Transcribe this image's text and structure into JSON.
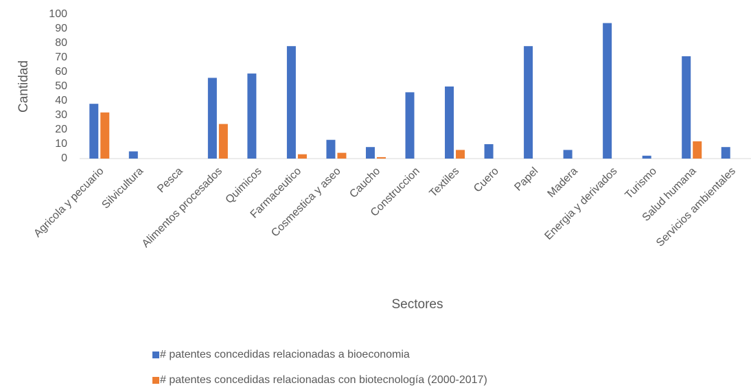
{
  "chart_data": {
    "type": "bar",
    "categories": [
      "Agricola y pecuario",
      "Silvicultura",
      "Pesca",
      "Alimentos procesados",
      "Quimicos",
      "Farmaceutico",
      "Cosmestica y aseo",
      "Caucho",
      "Construccion",
      "Textiles",
      "Cuero",
      "Papel",
      "Madera",
      "Energia y derivados",
      "Turismo",
      "Salud humana",
      "Servicios ambientales"
    ],
    "series": [
      {
        "name": "# patentes concedidas relacionadas a bioeconomia",
        "color": "#4472c4",
        "values": [
          38,
          5,
          0,
          56,
          59,
          78,
          13,
          8,
          46,
          50,
          10,
          78,
          6,
          94,
          2,
          71,
          8
        ]
      },
      {
        "name": "# patentes concedidas relacionadas con biotecnología (2000-2017)",
        "color": "#ed7d31",
        "values": [
          32,
          0,
          0,
          24,
          0,
          3,
          4,
          1,
          0,
          6,
          0,
          0,
          0,
          0,
          0,
          12,
          0
        ]
      }
    ],
    "x_label": "Sectores",
    "y_label": "Cantidad",
    "ylim": [
      0,
      100
    ],
    "yticks": [
      0,
      10,
      20,
      30,
      40,
      50,
      60,
      70,
      80,
      90,
      100
    ],
    "grid": false,
    "legend": "bottom"
  }
}
